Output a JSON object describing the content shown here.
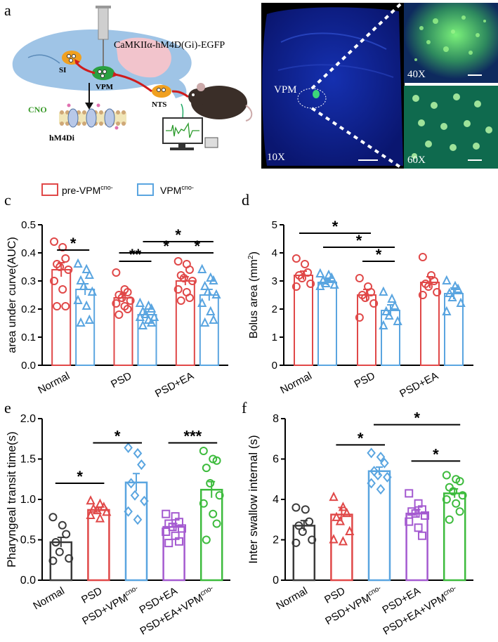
{
  "panels": {
    "a": {
      "letter": "a",
      "construct": "CaMKIIα-hM4D(Gi)-EGFP",
      "labels": {
        "si": "SI",
        "vpm": "VPM",
        "nts": "NTS",
        "cno": "CNO",
        "receptor": "hM4Di"
      },
      "colors": {
        "brain": "#9fc4e6",
        "cerebellum": "#f2c4cc",
        "pathway": "#d01c1c"
      }
    },
    "b": {
      "letter": "b",
      "vpm_label": "VPM",
      "mag_10x": "10X",
      "mag_40x": "40X",
      "mag_60x": "60X"
    },
    "c": {
      "letter": "c"
    },
    "d": {
      "letter": "d"
    },
    "e": {
      "letter": "e"
    },
    "f": {
      "letter": "f"
    }
  },
  "legend": {
    "pre_label": "pre-VPM",
    "pre_sup": "cno-",
    "vpm_label": "VPM",
    "vpm_sup": "cno-"
  },
  "colors": {
    "red": "#e04848",
    "blue": "#5aa5e0",
    "black": "#3a3a3a",
    "purple": "#a45ad0",
    "green": "#3dbb3d",
    "sig": "#000000"
  },
  "chart_data": [
    {
      "panel": "c",
      "type": "bar",
      "ylabel": "area under curve(AUC)",
      "ylim": [
        0,
        0.5
      ],
      "yticks": [
        "0.0",
        "0.1",
        "0.2",
        "0.3",
        "0.4",
        "0.5"
      ],
      "categories": [
        "Normal",
        "PSD",
        "PSD+EA"
      ],
      "series": [
        {
          "name": "pre-VPMcno-",
          "marker": "circle",
          "values": [
            0.34,
            0.24,
            0.3
          ],
          "sem": [
            0.025,
            0.015,
            0.015
          ],
          "points": [
            [
              0.44,
              0.42,
              0.38,
              0.36,
              0.35,
              0.34,
              0.3,
              0.27,
              0.21,
              0.21
            ],
            [
              0.33,
              0.27,
              0.26,
              0.25,
              0.24,
              0.23,
              0.22,
              0.21,
              0.2,
              0.18
            ],
            [
              0.37,
              0.36,
              0.34,
              0.32,
              0.31,
              0.3,
              0.27,
              0.26,
              0.24,
              0.23
            ]
          ]
        },
        {
          "name": "VPMcno-",
          "marker": "triangle",
          "values": [
            0.27,
            0.18,
            0.25
          ],
          "sem": [
            0.02,
            0.01,
            0.02
          ],
          "points": [
            [
              0.36,
              0.34,
              0.32,
              0.3,
              0.28,
              0.26,
              0.23,
              0.21,
              0.16,
              0.15
            ],
            [
              0.22,
              0.21,
              0.2,
              0.19,
              0.18,
              0.17,
              0.17,
              0.16,
              0.15,
              0.14
            ],
            [
              0.34,
              0.31,
              0.3,
              0.28,
              0.26,
              0.25,
              0.22,
              0.19,
              0.16,
              0.15
            ]
          ]
        }
      ],
      "significance": [
        {
          "from": [
            0,
            0
          ],
          "to": [
            0,
            1
          ],
          "label": "*",
          "y": 0.41
        },
        {
          "from": [
            1,
            0
          ],
          "to": [
            1,
            1
          ],
          "label": "**",
          "y": 0.37
        },
        {
          "from": [
            1,
            0
          ],
          "to": [
            2,
            1
          ],
          "label": "*",
          "y": 0.4
        },
        {
          "from": [
            2,
            0
          ],
          "to": [
            2,
            1
          ],
          "label": "*",
          "y": 0.4
        },
        {
          "from": [
            1,
            1
          ],
          "to": [
            2,
            1
          ],
          "label": "*",
          "y": 0.44
        }
      ]
    },
    {
      "panel": "d",
      "type": "bar",
      "ylabel": "Bolus area (mm",
      "ylabel_sup": "2",
      "ylabel_end": ")",
      "ylim": [
        0,
        5
      ],
      "yticks": [
        "0",
        "1",
        "2",
        "3",
        "4",
        "5"
      ],
      "categories": [
        "Normal",
        "PSD",
        "PSD+EA"
      ],
      "series": [
        {
          "name": "pre-VPMcno-",
          "marker": "circle",
          "values": [
            3.2,
            2.5,
            2.95
          ],
          "sem": [
            0.15,
            0.2,
            0.2
          ],
          "points": [
            [
              3.8,
              3.6,
              3.3,
              3.2,
              3.1,
              2.9,
              2.8
            ],
            [
              3.1,
              2.8,
              2.6,
              2.5,
              2.4,
              2.2,
              1.7
            ],
            [
              3.85,
              3.2,
              3.0,
              2.9,
              2.8,
              2.6,
              2.5
            ]
          ]
        },
        {
          "name": "VPMcno-",
          "marker": "triangle",
          "values": [
            2.95,
            1.95,
            2.55
          ],
          "sem": [
            0.1,
            0.2,
            0.2
          ],
          "points": [
            [
              3.25,
              3.2,
              3.1,
              3.0,
              2.9,
              2.85,
              2.8
            ],
            [
              2.6,
              2.35,
              2.1,
              1.9,
              1.75,
              1.55,
              1.4
            ],
            [
              3.0,
              2.8,
              2.7,
              2.55,
              2.4,
              2.2,
              1.9
            ]
          ]
        }
      ],
      "significance": [
        {
          "from": [
            0,
            0
          ],
          "to": [
            1,
            0
          ],
          "label": "*",
          "y": 4.7
        },
        {
          "from": [
            0,
            1
          ],
          "to": [
            1,
            1
          ],
          "label": "*",
          "y": 4.2
        },
        {
          "from": [
            1,
            0
          ],
          "to": [
            1,
            1
          ],
          "label": "*",
          "y": 3.7
        }
      ]
    },
    {
      "panel": "e",
      "type": "bar",
      "ylabel": "Pharyngeal transit time(s)",
      "ylim": [
        0,
        2.0
      ],
      "yticks": [
        "0.0",
        "0.5",
        "1.0",
        "1.5",
        "2.0"
      ],
      "categories": [
        "Normal",
        "PSD",
        "PSD+VPM",
        "PSD+EA",
        "PSD+EA+VPM"
      ],
      "category_sup": [
        "",
        "",
        "cno-",
        "",
        "cno-"
      ],
      "bar_colors": [
        "black",
        "red",
        "blue",
        "purple",
        "green"
      ],
      "markers": [
        "circle",
        "triangle",
        "diamond",
        "square",
        "circle"
      ],
      "values": [
        0.47,
        0.87,
        1.21,
        0.66,
        1.12
      ],
      "sem": [
        0.06,
        0.03,
        0.11,
        0.04,
        0.1
      ],
      "points": [
        [
          0.78,
          0.68,
          0.57,
          0.47,
          0.35,
          0.27,
          0.24
        ],
        [
          0.98,
          0.94,
          0.9,
          0.88,
          0.86,
          0.84,
          0.8,
          0.76
        ],
        [
          1.64,
          1.57,
          1.43,
          1.2,
          1.05,
          0.98,
          0.85,
          0.75
        ],
        [
          0.82,
          0.79,
          0.72,
          0.7,
          0.66,
          0.64,
          0.6,
          0.55,
          0.48,
          0.46
        ],
        [
          1.6,
          1.5,
          1.48,
          1.39,
          1.2,
          1.05,
          0.95,
          0.82,
          0.7,
          0.5
        ]
      ],
      "significance": [
        {
          "from": 0,
          "to": 1,
          "label": "*",
          "y": 1.2
        },
        {
          "from": 1,
          "to": 2,
          "label": "*",
          "y": 1.7
        },
        {
          "from": 3,
          "to": 4,
          "label": "***",
          "y": 1.7
        }
      ]
    },
    {
      "panel": "f",
      "type": "bar",
      "ylabel": "Inter swallow internal (s)",
      "ylim": [
        0,
        8
      ],
      "yticks": [
        "0",
        "2",
        "4",
        "6",
        "8"
      ],
      "categories": [
        "Normal",
        "PSD",
        "PSD+VPM",
        "PSD+EA",
        "PSD+EA+VPM"
      ],
      "category_sup": [
        "",
        "",
        "cno-",
        "",
        "cno-"
      ],
      "bar_colors": [
        "black",
        "red",
        "blue",
        "purple",
        "green"
      ],
      "markers": [
        "circle",
        "triangle",
        "diamond",
        "square",
        "circle"
      ],
      "values": [
        2.7,
        3.25,
        5.4,
        3.3,
        4.3
      ],
      "sem": [
        0.25,
        0.35,
        0.2,
        0.2,
        0.22
      ],
      "points": [
        [
          3.6,
          3.5,
          2.9,
          2.7,
          2.4,
          2.0,
          1.85
        ],
        [
          4.1,
          3.6,
          3.3,
          3.1,
          2.9,
          2.4,
          2.0,
          1.9
        ],
        [
          6.3,
          6.1,
          5.8,
          5.4,
          5.2,
          5.1,
          4.8,
          4.5
        ],
        [
          4.3,
          3.8,
          3.5,
          3.4,
          3.3,
          3.2,
          2.9,
          2.6,
          2.2
        ],
        [
          5.2,
          5.0,
          4.9,
          4.6,
          4.4,
          4.2,
          4.0,
          3.8,
          3.4,
          3.0
        ]
      ],
      "significance": [
        {
          "from": 1,
          "to": 2,
          "label": "*",
          "y": 6.7
        },
        {
          "from": 2,
          "to": 4,
          "label": "*",
          "y": 7.7
        },
        {
          "from": 3,
          "to": 4,
          "label": "*",
          "y": 5.9
        }
      ]
    }
  ]
}
